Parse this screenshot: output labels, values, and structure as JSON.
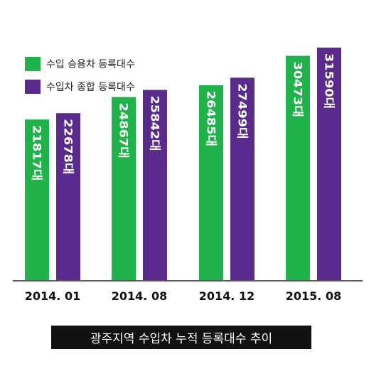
{
  "colors": {
    "commercial": "#22b24c",
    "total": "#5a2b8c",
    "axis": "#222222"
  },
  "caption": "광주지역 수입차 누적 등록대수 추이",
  "chart_data": {
    "type": "bar",
    "title": "광주지역 수입차 누적 등록대수 추이",
    "categories": [
      "2014. 01",
      "2014. 08",
      "2014. 12",
      "2015. 08"
    ],
    "ylim": [
      0,
      34000
    ],
    "legend_position": "top-left",
    "grid": false,
    "series": [
      {
        "name": "수입 승용차 등록대수",
        "values": [
          21817,
          24867,
          26485,
          30473
        ],
        "labels": [
          "21817대",
          "24867대",
          "26485대",
          "30473대"
        ]
      },
      {
        "name": "수입차 종합 등록대수",
        "values": [
          22678,
          25842,
          27499,
          31590
        ],
        "labels": [
          "22678대",
          "25842대",
          "27499대",
          "31590대"
        ]
      }
    ]
  }
}
